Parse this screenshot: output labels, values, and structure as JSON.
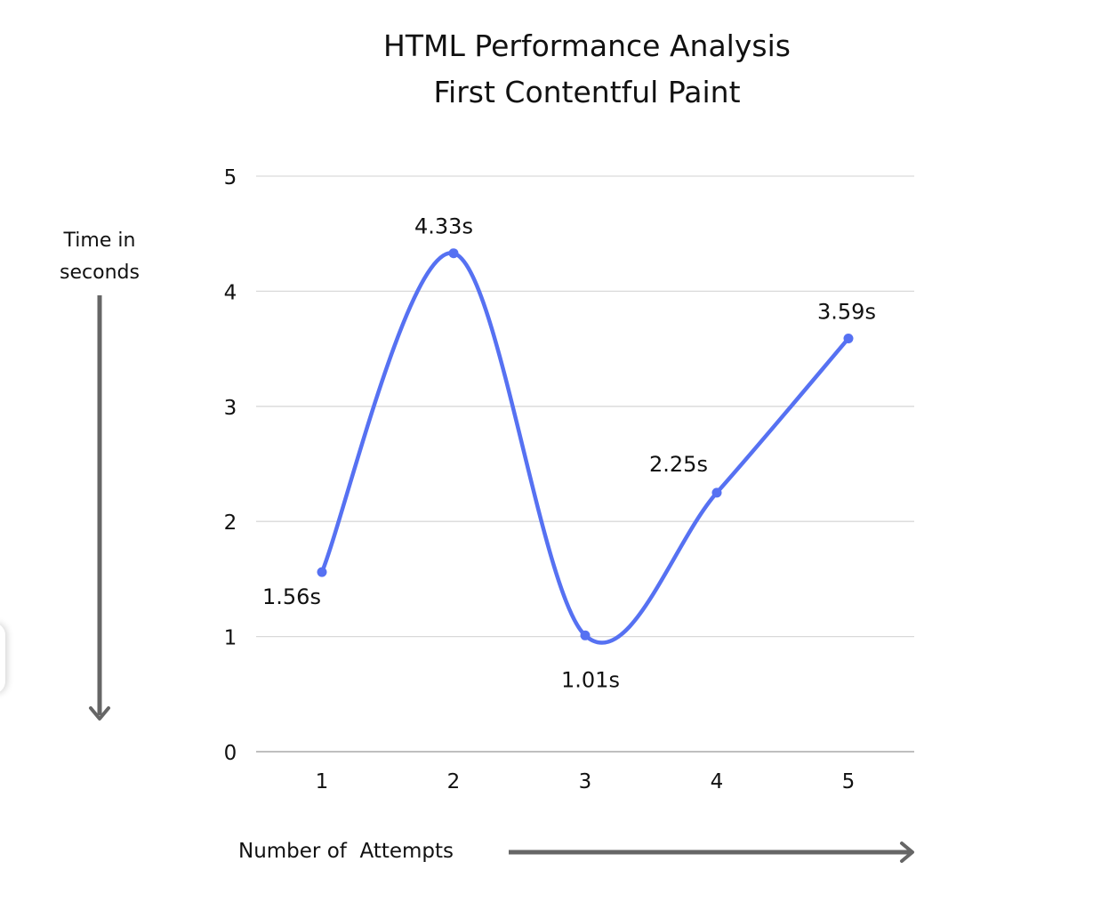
{
  "chart_data": {
    "type": "line",
    "title": [
      "HTML Performance Analysis",
      "First Contentful Paint"
    ],
    "xlabel": "Number of  Attempts",
    "ylabel": [
      "Time in",
      "seconds"
    ],
    "categories": [
      "1",
      "2",
      "3",
      "4",
      "5"
    ],
    "series": [
      {
        "values": [
          1.56,
          4.33,
          1.01,
          2.25,
          3.59
        ],
        "labels": [
          "1.56s",
          "4.33s",
          "1.01s",
          "2.25s",
          "3.59s"
        ],
        "color": "#5671f2",
        "smooth": true
      }
    ],
    "yticks": [
      "0",
      "1",
      "2",
      "3",
      "4",
      "5"
    ],
    "ylim": [
      0,
      5
    ],
    "grid": true,
    "legend": "none"
  },
  "colors": {
    "line": "#5671f2",
    "grid": "#d9d9d9",
    "baseline": "#bfbfbf",
    "arrow": "#666666"
  },
  "icons": {
    "y_arrow": "arrow-down-icon",
    "x_arrow": "arrow-right-icon"
  }
}
